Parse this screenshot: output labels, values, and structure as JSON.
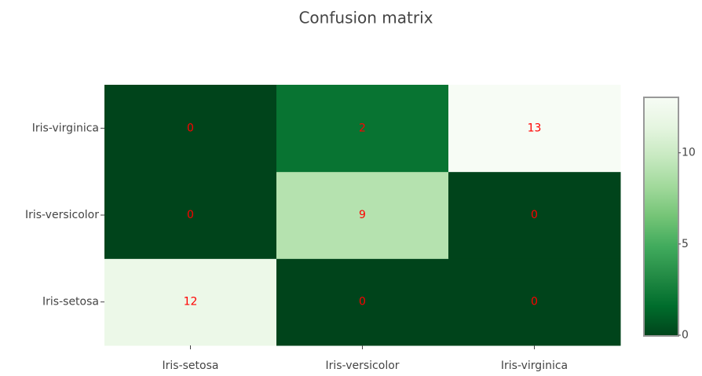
{
  "chart_data": {
    "type": "heatmap",
    "title": "Confusion matrix",
    "x": [
      "Iris-setosa",
      "Iris-versicolor",
      "Iris-virginica"
    ],
    "y": [
      "Iris-setosa",
      "Iris-versicolor",
      "Iris-virginica"
    ],
    "z": [
      [
        12,
        0,
        0
      ],
      [
        0,
        9,
        0
      ],
      [
        0,
        2,
        13
      ]
    ],
    "zlim": [
      0,
      13
    ],
    "zticks": [
      0,
      5,
      10
    ],
    "colorscale": [
      [
        0,
        "#00441b"
      ],
      [
        0.125,
        "#006d2c"
      ],
      [
        0.25,
        "#238b45"
      ],
      [
        0.375,
        "#41ab5d"
      ],
      [
        0.5,
        "#74c476"
      ],
      [
        0.625,
        "#a1d99b"
      ],
      [
        0.75,
        "#c7e9c0"
      ],
      [
        0.875,
        "#e5f5e0"
      ],
      [
        1,
        "#f7fcf5"
      ]
    ],
    "text_color": "#ff0000"
  }
}
